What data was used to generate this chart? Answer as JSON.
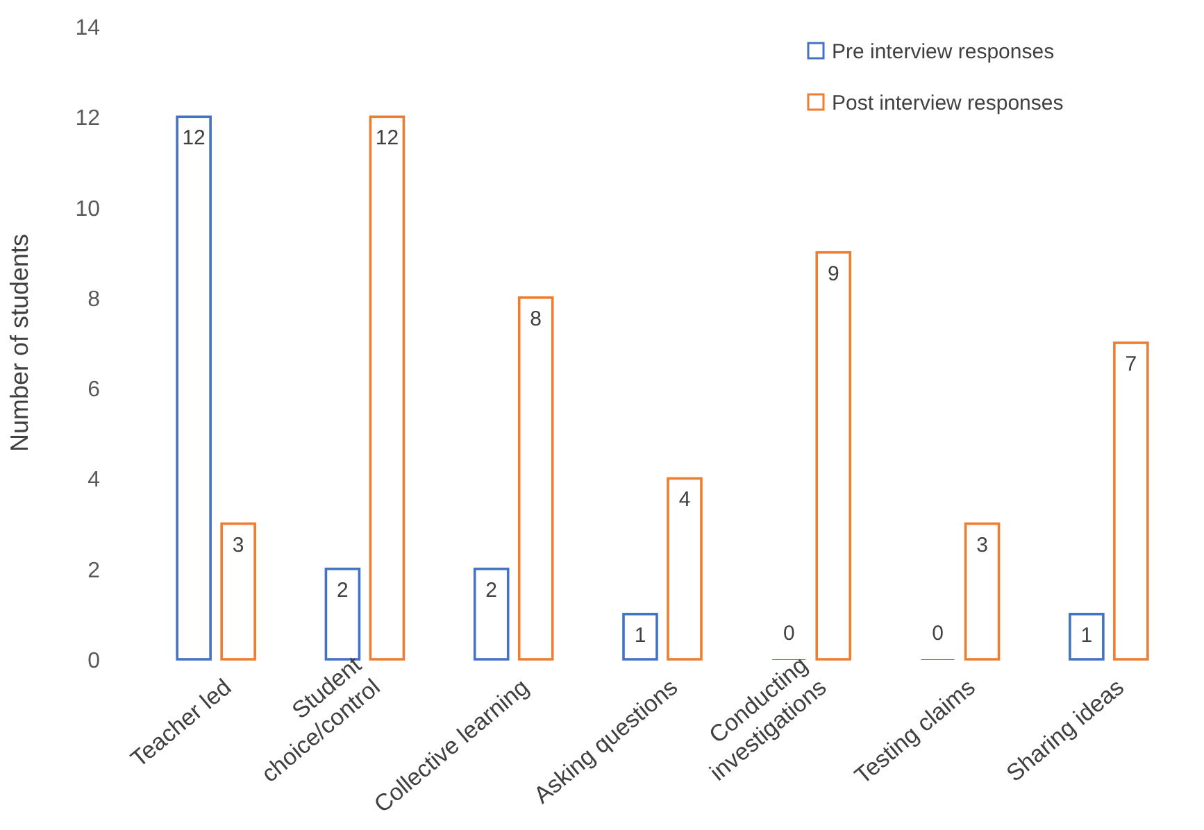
{
  "chart_data": {
    "type": "bar",
    "ylabel": "Number of students",
    "categories": [
      "Teacher led",
      "Student\nchoice/control",
      "Collective learning",
      "Asking  questions",
      "Conducting\ninvestigations",
      "Testing claims",
      "Sharing ideas"
    ],
    "series": [
      {
        "name": "Pre interview responses",
        "color": "#4472c4",
        "values": [
          12,
          2,
          2,
          1,
          0,
          0,
          1
        ]
      },
      {
        "name": "Post interview responses",
        "color": "#ed7d31",
        "values": [
          3,
          12,
          8,
          4,
          9,
          3,
          7
        ]
      }
    ],
    "ylim": [
      0,
      14
    ],
    "yticks": [
      0,
      2,
      4,
      6,
      8,
      10,
      12,
      14
    ],
    "data_labels": true,
    "legend": "top right",
    "grid": false
  }
}
